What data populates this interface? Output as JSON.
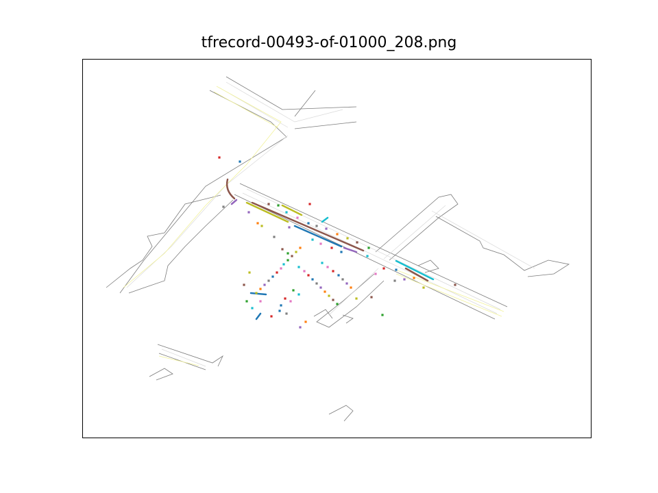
{
  "figure": {
    "title": "tfrecord-00493-of-01000_208.png"
  },
  "colors": {
    "road_edge": "#7a7a7a",
    "lane_center": "#d9d9d9",
    "lane_yellow": "#f5f5a0",
    "agent_palette": [
      "#1f77b4",
      "#ff7f0e",
      "#2ca02c",
      "#d62728",
      "#9467bd",
      "#8c564b",
      "#e377c2",
      "#7f7f7f",
      "#bcbd22",
      "#17becf"
    ]
  }
}
